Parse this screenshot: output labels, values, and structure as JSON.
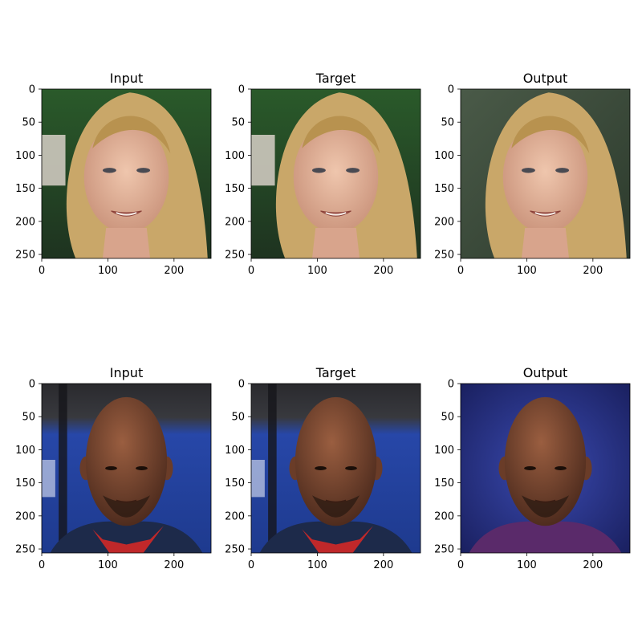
{
  "figure": {
    "panels": [
      {
        "title": "Input",
        "content": "woman-face",
        "variant": "photo"
      },
      {
        "title": "Target",
        "content": "woman-face",
        "variant": "photo"
      },
      {
        "title": "Output",
        "content": "woman-face",
        "variant": "generated"
      },
      {
        "title": "Input",
        "content": "man-face",
        "variant": "photo"
      },
      {
        "title": "Target",
        "content": "man-face",
        "variant": "photo"
      },
      {
        "title": "Output",
        "content": "man-face",
        "variant": "generated"
      }
    ],
    "axis": {
      "x_ticks": [
        "0",
        "100",
        "200"
      ],
      "y_ticks": [
        "0",
        "50",
        "100",
        "150",
        "200",
        "250"
      ],
      "x_values": [
        0,
        100,
        200
      ],
      "y_values": [
        0,
        50,
        100,
        150,
        200,
        250
      ],
      "range": [
        0,
        256
      ]
    },
    "colors": {
      "woman_bg_photo": "#2f4a28",
      "woman_bg_generated": "#3e4a3a",
      "woman_hair": "#c9a769",
      "woman_skin": "#e2b49a",
      "man_bg_photo": "#2b4fa8",
      "man_bg_generated": "#2a3a96",
      "man_skin": "#7a4a33",
      "man_jersey": "#1d2a4a",
      "man_collar": "#c0282a"
    }
  }
}
